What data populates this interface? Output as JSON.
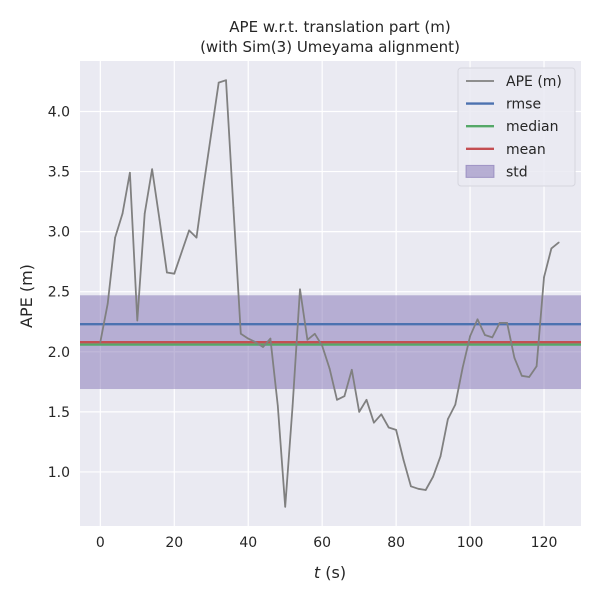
{
  "chart_data": {
    "type": "line",
    "title": [
      "APE w.r.t. translation part (m)",
      "(with Sim(3) Umeyama alignment)"
    ],
    "xlabel_var": "t",
    "xlabel_unit": " (s)",
    "ylabel": "APE (m)",
    "xlim": [
      -5.5,
      130
    ],
    "ylim": [
      0.55,
      4.42
    ],
    "xticks": [
      0,
      20,
      40,
      60,
      80,
      100,
      120
    ],
    "yticks": [
      1.0,
      1.5,
      2.0,
      2.5,
      3.0,
      3.5,
      4.0
    ],
    "grid": true,
    "legend_position": "top-right",
    "series": [
      {
        "name": "APE (m)",
        "color": "#808080",
        "x": [
          0,
          2,
          4,
          6,
          8,
          10,
          12,
          14,
          16,
          18,
          20,
          22,
          24,
          26,
          28,
          30,
          32,
          34,
          36,
          38,
          40,
          42,
          44,
          46,
          48,
          50,
          52,
          54,
          56,
          58,
          60,
          62,
          64,
          66,
          68,
          70,
          72,
          74,
          76,
          78,
          80,
          82,
          84,
          86,
          88,
          90,
          92,
          94,
          96,
          98,
          100,
          102,
          104,
          106,
          108,
          110,
          112,
          114,
          116,
          118,
          120,
          122,
          124
        ],
        "y": [
          2.08,
          2.4,
          2.95,
          3.15,
          3.49,
          2.26,
          3.15,
          3.52,
          3.1,
          2.66,
          2.65,
          2.83,
          3.01,
          2.95,
          3.4,
          3.82,
          4.24,
          4.26,
          3.2,
          2.15,
          2.11,
          2.08,
          2.04,
          2.11,
          1.55,
          0.71,
          1.55,
          2.52,
          2.1,
          2.15,
          2.05,
          1.86,
          1.6,
          1.63,
          1.85,
          1.5,
          1.6,
          1.41,
          1.48,
          1.37,
          1.35,
          1.1,
          0.88,
          0.86,
          0.85,
          0.96,
          1.13,
          1.44,
          1.56,
          1.87,
          2.13,
          2.27,
          2.14,
          2.12,
          2.24,
          2.24,
          1.95,
          1.8,
          1.79,
          1.88,
          2.62,
          2.86,
          2.91
        ]
      }
    ],
    "stats": {
      "rmse": 2.23,
      "median": 2.06,
      "mean": 2.08,
      "std_band": [
        1.69,
        2.47
      ]
    },
    "legend": [
      {
        "label": "APE (m)",
        "kind": "line",
        "color": "#808080"
      },
      {
        "label": "rmse",
        "kind": "line",
        "color": "#4c72b0"
      },
      {
        "label": "median",
        "kind": "line",
        "color": "#55a868"
      },
      {
        "label": "mean",
        "kind": "line",
        "color": "#c44e52"
      },
      {
        "label": "std",
        "kind": "patch",
        "color": "#8172b3"
      }
    ],
    "colors": {
      "background": "#eaeaf2",
      "grid": "#ffffff",
      "rmse": "#4c72b0",
      "median": "#55a868",
      "mean": "#c44e52",
      "std": "#8172b3"
    }
  }
}
